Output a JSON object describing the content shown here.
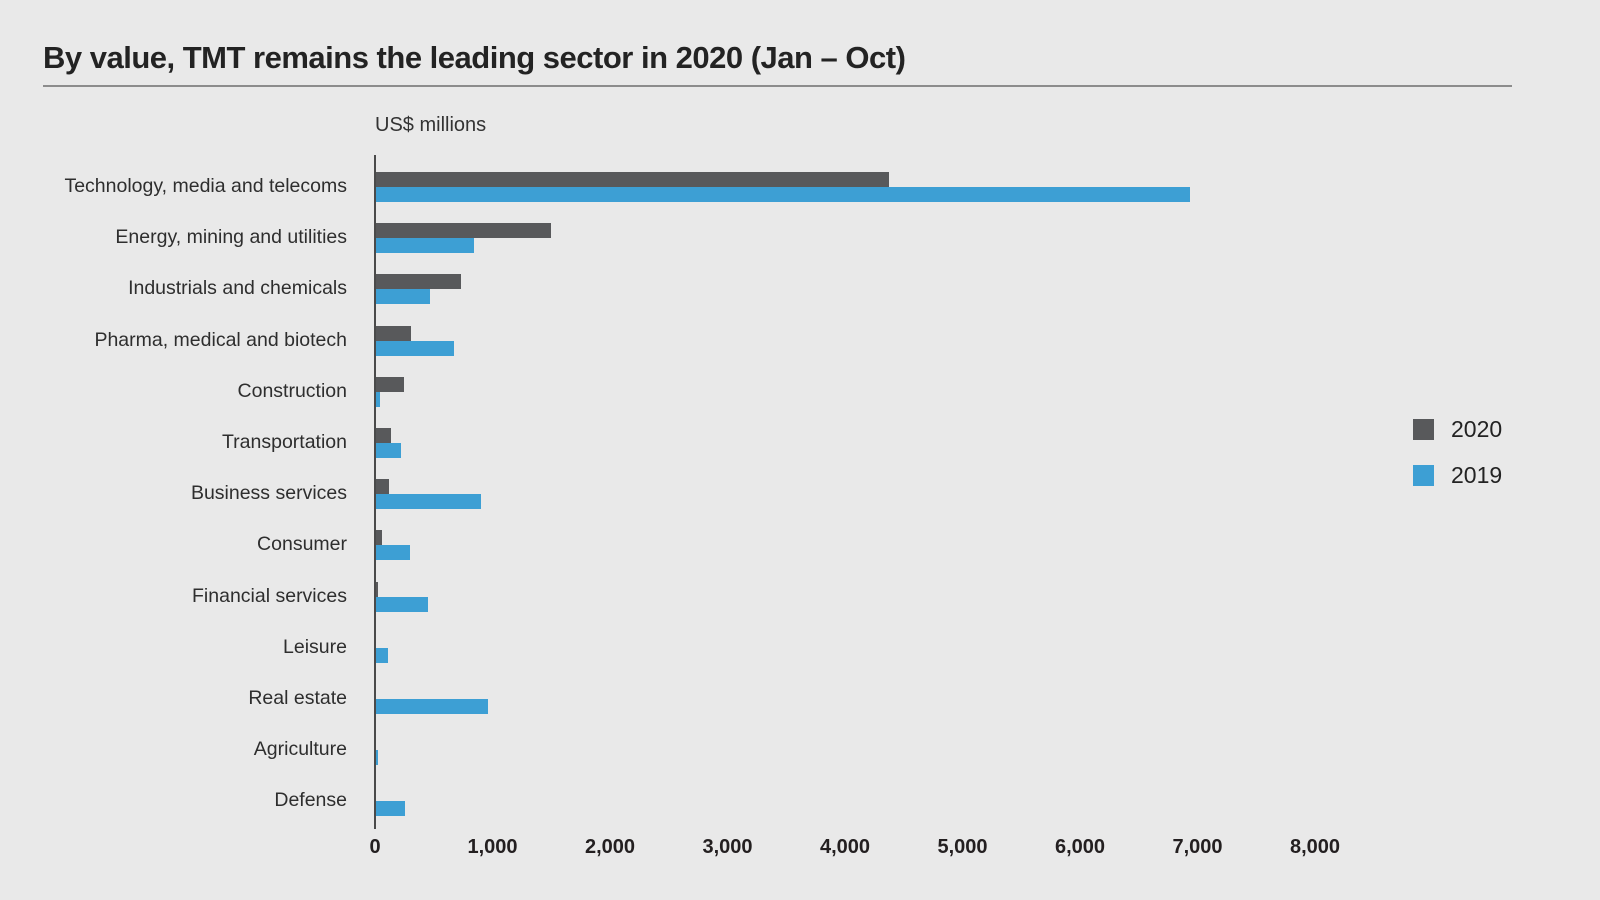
{
  "chart_data": {
    "type": "bar",
    "orientation": "horizontal",
    "title": "By value, TMT remains the leading sector in 2020 (Jan – Oct)",
    "units_label": "US$ millions",
    "categories": [
      "Technology, media and telecoms",
      "Energy, mining and utilities",
      "Industrials and chemicals",
      "Pharma, medical and biotech",
      "Construction",
      "Transportation",
      "Business services",
      "Consumer",
      "Financial services",
      "Leisure",
      "Real estate",
      "Agriculture",
      "Defense"
    ],
    "series": [
      {
        "name": "2020",
        "color": "#58595b",
        "values": [
          4370,
          1490,
          720,
          300,
          240,
          130,
          110,
          50,
          20,
          0,
          0,
          0,
          0
        ]
      },
      {
        "name": "2019",
        "color": "#3d9fd4",
        "values": [
          6930,
          835,
          460,
          660,
          30,
          210,
          890,
          290,
          440,
          105,
          950,
          20,
          250
        ]
      }
    ],
    "xlim": [
      0,
      8000
    ],
    "x_tick_values": [
      0,
      1000,
      2000,
      3000,
      4000,
      5000,
      6000,
      7000,
      8000
    ],
    "x_tick_labels": [
      "0",
      "1,000",
      "2,000",
      "3,000",
      "4,000",
      "5,000",
      "6,000",
      "7,000",
      "8,000"
    ],
    "grid": "off",
    "legend_position": "right",
    "background_color": "#e9e9e9",
    "axis_color": "#4a4a4a"
  }
}
